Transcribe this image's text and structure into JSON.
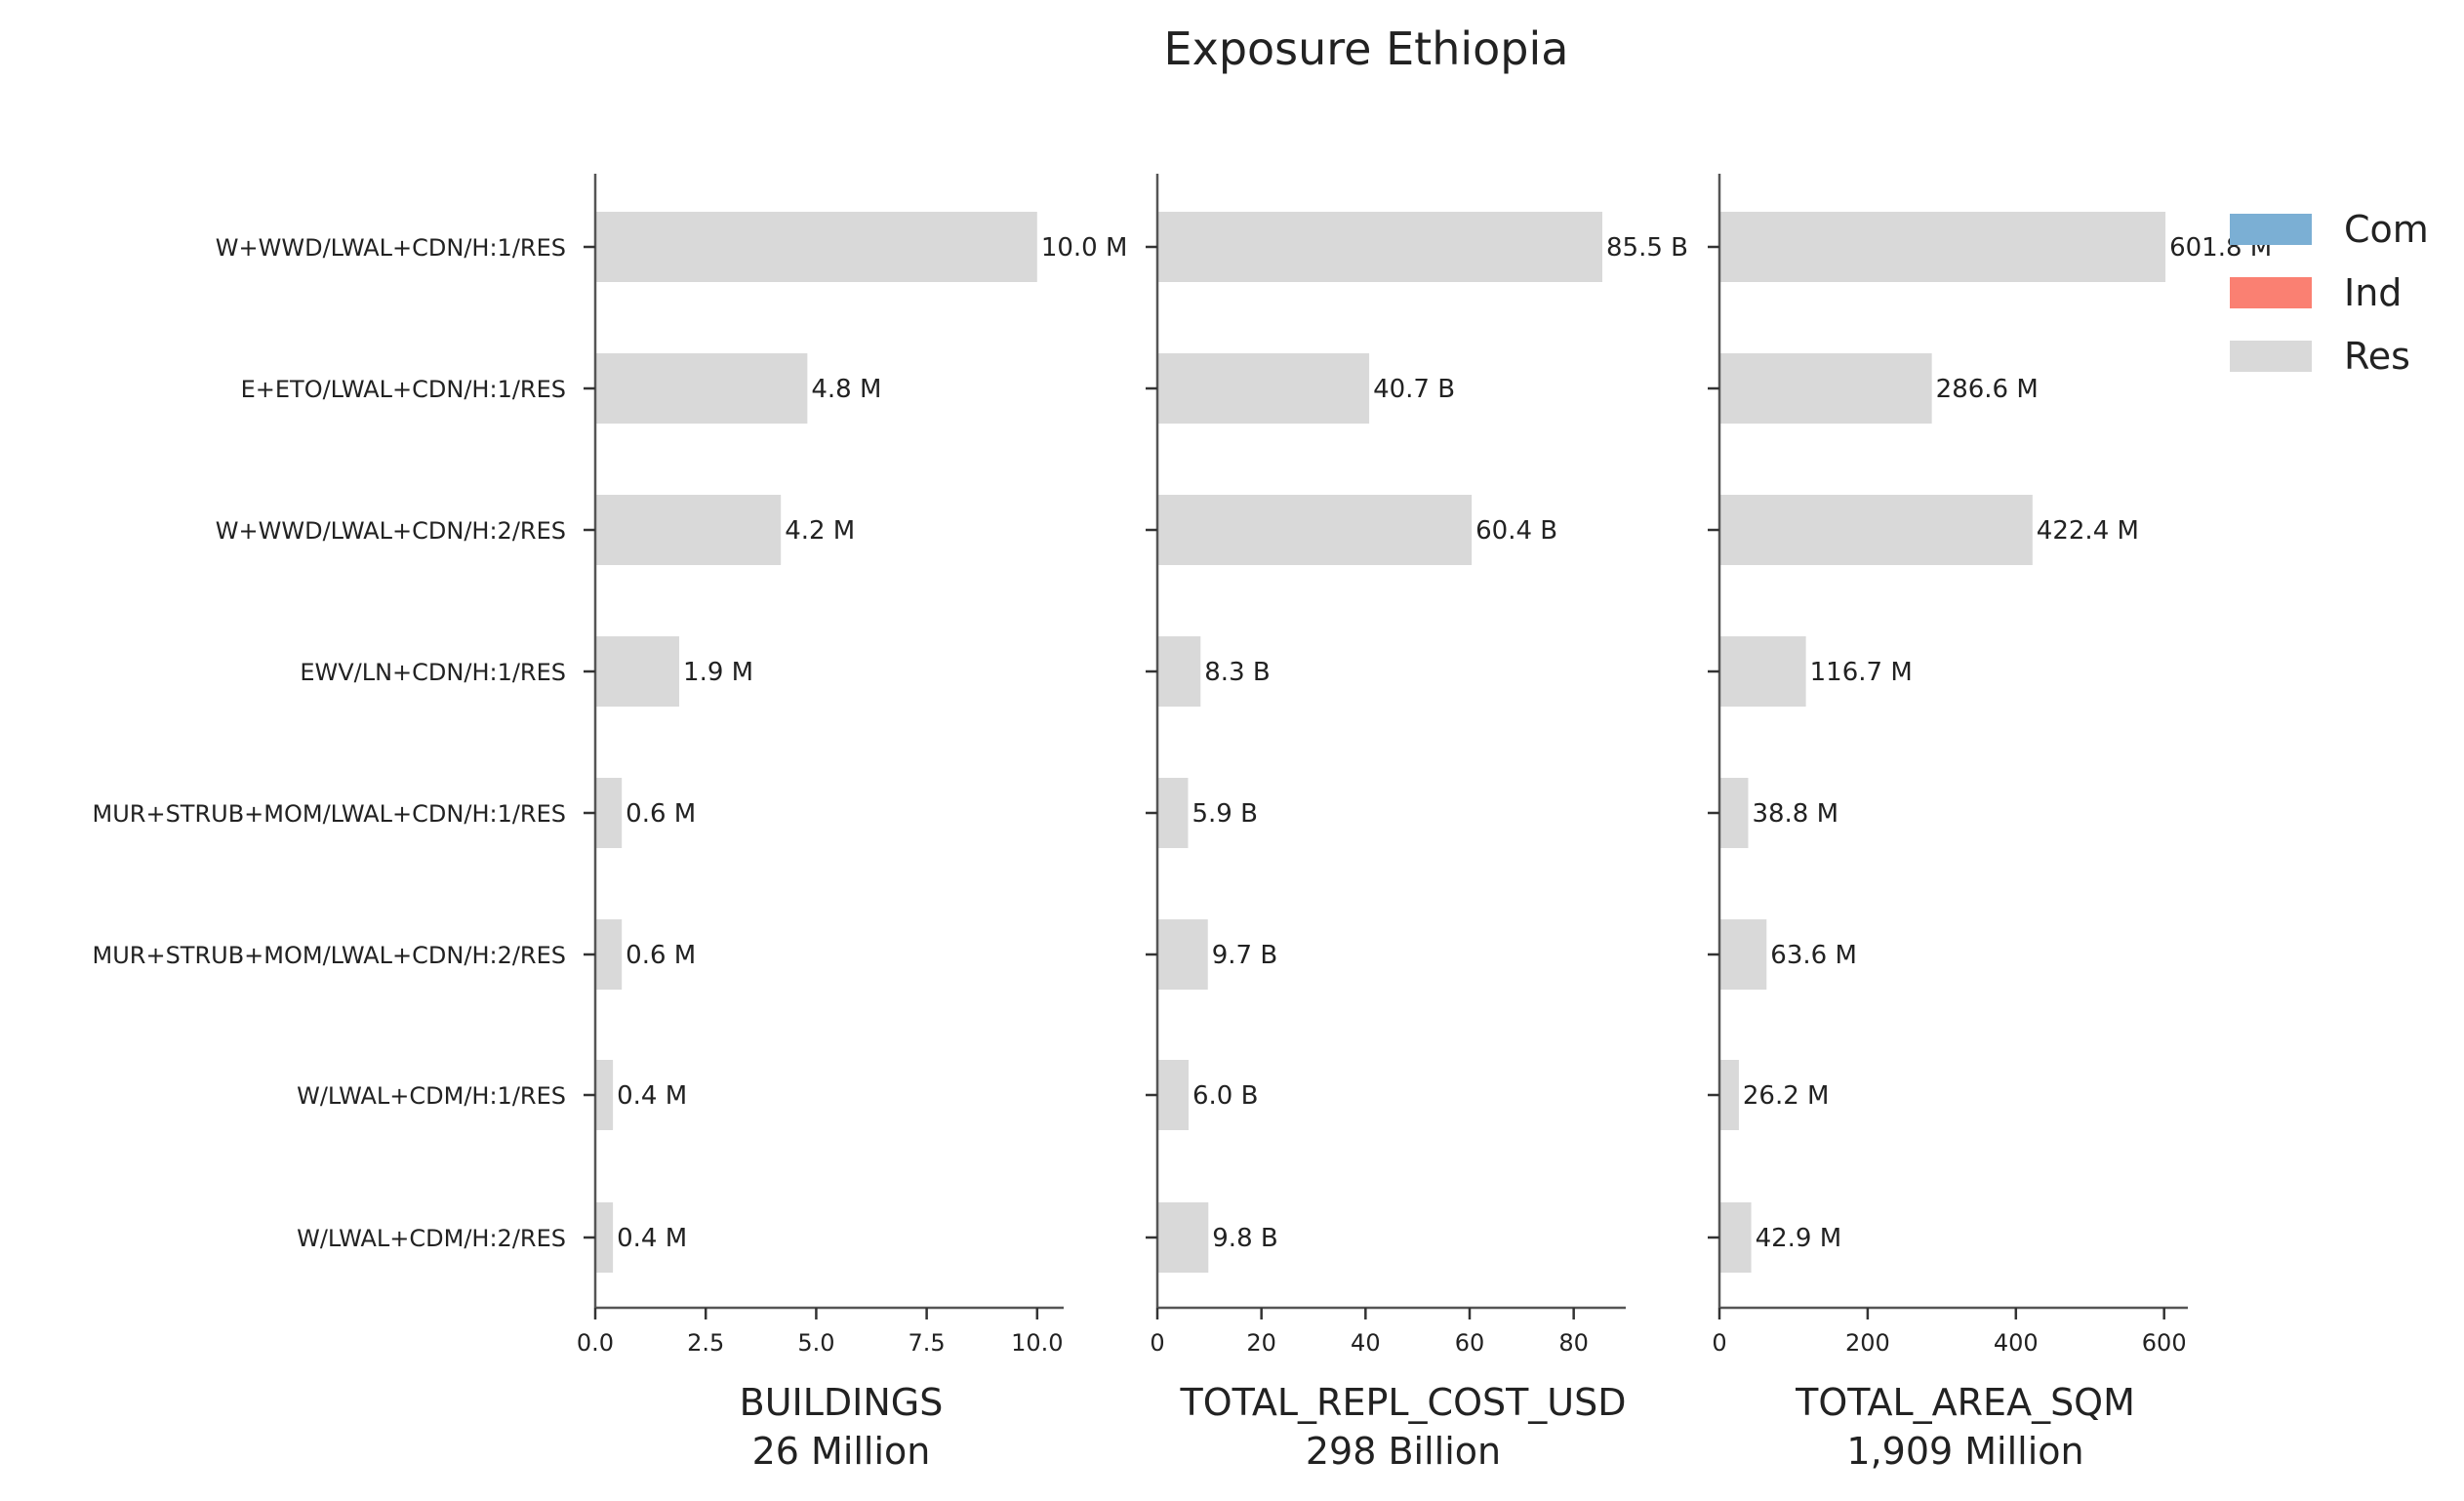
{
  "chart_data": {
    "type": "bar",
    "orientation": "horizontal",
    "title": "Exposure Ethiopia",
    "categories": [
      "W+WWD/LWAL+CDN/H:1/RES",
      "E+ETO/LWAL+CDN/H:1/RES",
      "W+WWD/LWAL+CDN/H:2/RES",
      "EWV/LN+CDN/H:1/RES",
      "MUR+STRUB+MOM/LWAL+CDN/H:1/RES",
      "MUR+STRUB+MOM/LWAL+CDN/H:2/RES",
      "W/LWAL+CDM/H:1/RES",
      "W/LWAL+CDM/H:2/RES"
    ],
    "legend": {
      "placement": "top-right",
      "entries": [
        {
          "name": "Com",
          "color": "#7bafd4"
        },
        {
          "name": "Ind",
          "color": "#fa8072"
        },
        {
          "name": "Res",
          "color": "#d9d9d9"
        }
      ]
    },
    "panels": [
      {
        "xlabel": "BUILDINGS",
        "subtitle": "26 Million",
        "xlim": [
          0,
          10.6
        ],
        "ticks": [
          0,
          2.5,
          5.0,
          7.5,
          10.0
        ],
        "tick_labels": [
          "0.0",
          "2.5",
          "5.0",
          "7.5",
          "10.0"
        ],
        "series": "Res",
        "values": [
          10.0,
          4.8,
          4.2,
          1.9,
          0.6,
          0.6,
          0.4,
          0.4
        ],
        "value_labels": [
          "10.0 M",
          "4.8 M",
          "4.2 M",
          "1.9 M",
          "0.6 M",
          "0.6 M",
          "0.4 M",
          "0.4 M"
        ]
      },
      {
        "xlabel": "TOTAL_REPL_COST_USD",
        "subtitle": "298 Billion",
        "xlim": [
          0,
          90
        ],
        "ticks": [
          0,
          20,
          40,
          60,
          80
        ],
        "tick_labels": [
          "0",
          "20",
          "40",
          "60",
          "80"
        ],
        "series": "Res",
        "values": [
          85.5,
          40.7,
          60.4,
          8.3,
          5.9,
          9.7,
          6.0,
          9.8
        ],
        "value_labels": [
          "85.5 B",
          "40.7 B",
          "60.4 B",
          "8.3 B",
          "5.9 B",
          "9.7 B",
          "6.0 B",
          "9.8 B"
        ]
      },
      {
        "xlabel": "TOTAL_AREA_SQM",
        "subtitle": "1,909 Million",
        "xlim": [
          0,
          632
        ],
        "ticks": [
          0,
          200,
          400,
          600
        ],
        "tick_labels": [
          "0",
          "200",
          "400",
          "600"
        ],
        "series": "Res",
        "values": [
          601.8,
          286.6,
          422.4,
          116.7,
          38.8,
          63.6,
          26.2,
          42.9
        ],
        "value_labels": [
          "601.8 M",
          "286.6 M",
          "422.4 M",
          "116.7 M",
          "38.8 M",
          "63.6 M",
          "26.2 M",
          "42.9 M"
        ]
      }
    ]
  }
}
